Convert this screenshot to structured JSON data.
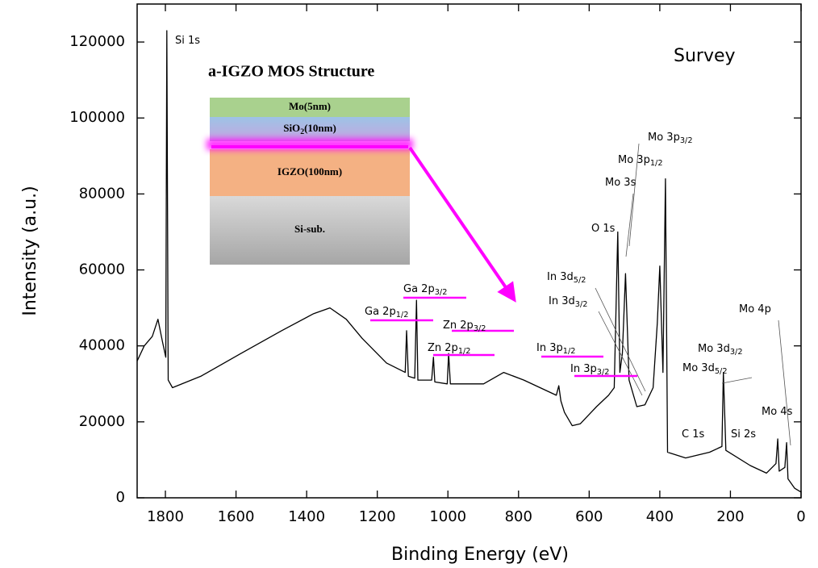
{
  "chart_data": {
    "type": "line",
    "xlabel": "Binding Energy (eV)",
    "ylabel": "Intensity (a.u.)",
    "corner_label": "Survey",
    "color": "#000000",
    "xlim": [
      1880,
      0
    ],
    "ylim": [
      0,
      130000
    ],
    "xticks": [
      1800,
      1600,
      1400,
      1200,
      1000,
      800,
      600,
      400,
      200,
      0
    ],
    "yticks": [
      0,
      20000,
      40000,
      60000,
      80000,
      100000,
      120000
    ],
    "x": [
      1880,
      1860,
      1837,
      1821,
      1808,
      1799,
      1796,
      1792,
      1780,
      1700,
      1586,
      1471,
      1380,
      1334,
      1288,
      1243,
      1174,
      1121,
      1117,
      1112,
      1094,
      1089,
      1085,
      1046,
      1041,
      1037,
      1002,
      998,
      993,
      899,
      842,
      785,
      693,
      686,
      680,
      670,
      648,
      625,
      579,
      545,
      529,
      519,
      513,
      506,
      497,
      487,
      465,
      442,
      419,
      407,
      400,
      391,
      384,
      378,
      327,
      259,
      224,
      220,
      213,
      144,
      98,
      71,
      66,
      62,
      46,
      41,
      37,
      18,
      0
    ],
    "values": [
      36000,
      40000,
      42500,
      47000,
      41000,
      37000,
      123000,
      31000,
      29000,
      32000,
      38000,
      44000,
      48500,
      50000,
      47000,
      42000,
      35500,
      33000,
      44000,
      32000,
      31500,
      52000,
      31000,
      31000,
      37000,
      30500,
      30000,
      38000,
      30000,
      30000,
      33000,
      31000,
      27000,
      29500,
      25500,
      22500,
      19000,
      19500,
      24000,
      27000,
      29000,
      70000,
      33000,
      38000,
      59000,
      31000,
      24000,
      24500,
      29000,
      46000,
      61000,
      33000,
      84000,
      12000,
      10500,
      12000,
      13500,
      33000,
      12500,
      8500,
      6500,
      9000,
      15500,
      7000,
      8000,
      14500,
      5000,
      2500,
      1500
    ],
    "annotations": [
      {
        "text": "Si 1s"
      },
      {
        "text": "Mo 3p",
        "sub": "3/2"
      },
      {
        "text": "Mo 3p",
        "sub": "1/2"
      },
      {
        "text": "Mo 3s"
      },
      {
        "text": "O 1s"
      },
      {
        "text": "In 3d",
        "sub": "5/2"
      },
      {
        "text": "In 3d",
        "sub": "3/2"
      },
      {
        "text": "Ga 2p",
        "sub": "3/2"
      },
      {
        "text": "Ga 2p",
        "sub": "1/2"
      },
      {
        "text": "Zn 2p",
        "sub": "3/2"
      },
      {
        "text": "Zn 2p",
        "sub": "1/2"
      },
      {
        "text": "In 3p",
        "sub": "1/2"
      },
      {
        "text": "In 3p",
        "sub": "3/2"
      },
      {
        "text": "Mo 4p"
      },
      {
        "text": "Mo 3d",
        "sub": "3/2"
      },
      {
        "text": "Mo 3d",
        "sub": "5/2"
      },
      {
        "text": "Mo 4s"
      },
      {
        "text": "Si 2s"
      },
      {
        "text": "C 1s"
      }
    ],
    "inset": {
      "title": "a-IGZO MOS Structure",
      "layers": [
        {
          "text": "Mo(5nm)"
        },
        {
          "text": "SiO",
          "sub": "2",
          "after": "(10nm)"
        },
        {
          "text": "IGZO(100nm)"
        },
        {
          "text": "Si-sub."
        }
      ]
    }
  }
}
